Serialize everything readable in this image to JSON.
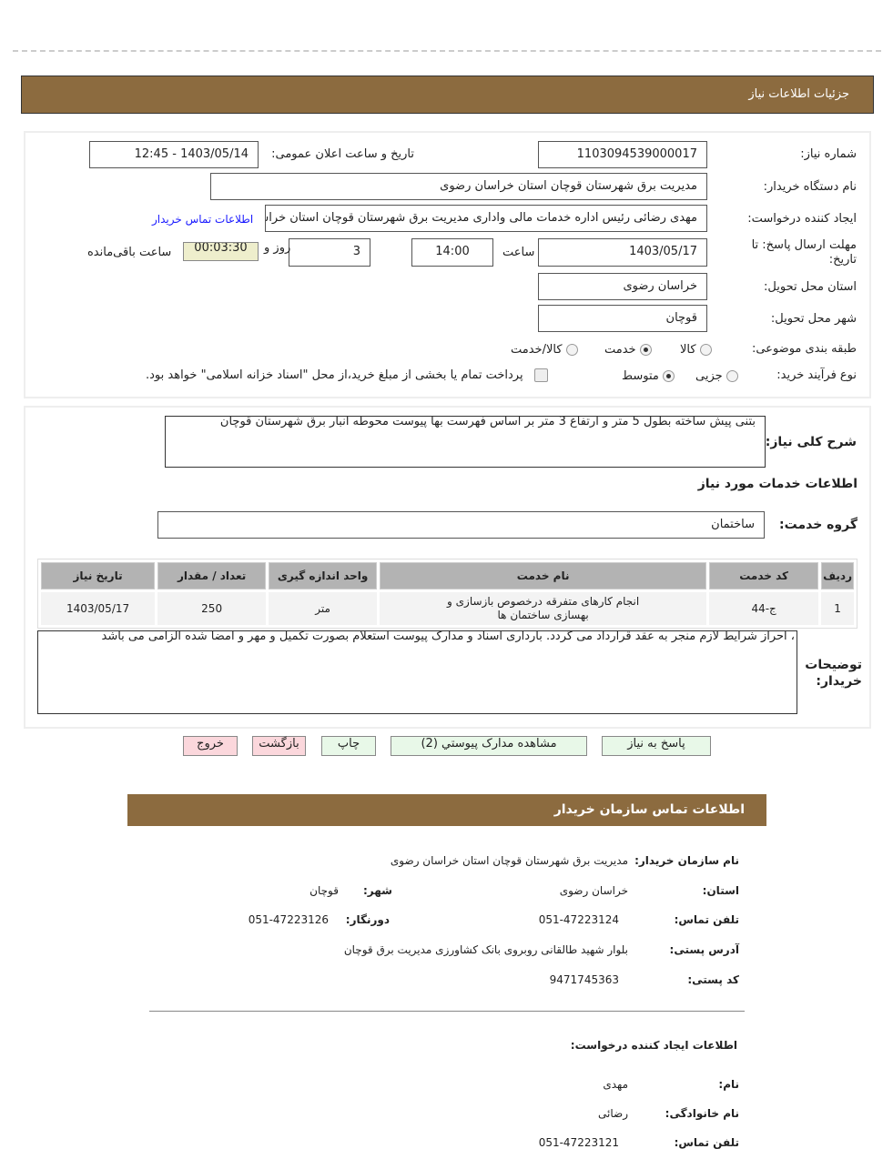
{
  "header": {
    "title": "جزئیات اطلاعات نیاز"
  },
  "details": {
    "need_number_label": "شماره نیاز:",
    "need_number": "1103094539000017",
    "announce_label": "تاریخ و ساعت اعلان عمومی:",
    "announce_value": "1403/05/14 - 12:45",
    "buyer_label": "نام دستگاه خریدار:",
    "buyer_value": "مدیریت برق شهرستان قوچان استان خراسان رضوی",
    "creator_label": "ایجاد کننده درخواست:",
    "creator_value": "مهدی رضائی رئیس اداره خدمات مالی واداری مدیریت برق شهرستان قوچان استان خراسان رضوی",
    "contact_link": "اطلاعات تماس خریدار",
    "deadline_label": "مهلت ارسال پاسخ: تا تاریخ:",
    "deadline_date": "1403/05/17",
    "time_label": "ساعت",
    "deadline_time": "14:00",
    "days": "3",
    "days_label": "روز و",
    "timer": "00:03:30",
    "remaining_label": "ساعت باقی‌مانده",
    "province_label": "استان محل تحویل:",
    "province_value": "خراسان رضوی",
    "city_label": "شهر محل تحویل:",
    "city_value": "قوچان",
    "category_label": "طبقه بندی موضوعی:",
    "category_options": [
      "کالا",
      "خدمت",
      "کالا/خدمت"
    ],
    "category_selected": "خدمت",
    "process_label": "نوع فرآیند خرید:",
    "process_options": [
      "جزیی",
      "متوسط"
    ],
    "process_selected": "متوسط",
    "payment_note": "پرداخت تمام یا بخشی از مبلغ خرید،از محل \"اسناد خزانه اسلامی\" خواهد بود."
  },
  "services": {
    "desc_label": "شرح کلی نیاز:",
    "desc_value": "بتنی پیش ساخته بطول 5 متر و ارتفاع 3 متر بر اساس فهرست بها پیوست محوطه انبار برق شهرستان قوچان",
    "section_title": "اطلاعات خدمات مورد نیاز",
    "group_label": "گروه خدمت:",
    "group_value": "ساختمان",
    "columns": [
      "ردیف",
      "کد خدمت",
      "نام خدمت",
      "واحد اندازه گیری",
      "تعداد / مقدار",
      "تاریخ نیاز"
    ],
    "rows": [
      [
        "1",
        "ج-44",
        "انجام کارهای متفرقه درخصوص بازسازی و بهسازی ساختمان ها",
        "متر",
        "250",
        "1403/05/17"
      ]
    ],
    "notes_label": "توضیحات خریدار:",
    "notes_value": "، احراز شرایط لازم منجر به عقد قرارداد می گردد. بارداری اسناد و مدارک پیوست استعلام بصورت تکمیل و مهر و امضا شده الزامی می باشد"
  },
  "buttons": {
    "reply": "پاسخ به نیاز",
    "docs": "مشاهده مدارک پیوستي (2)",
    "print": "چاپ",
    "back": "بازگشت",
    "exit": "خروج"
  },
  "contact": {
    "title": "اطلاعات تماس سازمان خریدار",
    "org_label": "نام سازمان خریدار:",
    "org_value": "مدیریت برق شهرستان قوچان استان خراسان رضوی",
    "province_label": "استان:",
    "province_value": "خراسان رضوی",
    "city_label": "شهر:",
    "city_value": "قوچان",
    "phone_label": "تلفن تماس:",
    "phone_value": "051-47223124",
    "fax_label": "دورنگار:",
    "fax_value": "051-47223126",
    "address_label": "آدرس پستی:",
    "address_value": "بلوار شهید طالقانی روبروی بانک کشاورزی مدیریت برق قوچان",
    "postal_label": "کد پستی:",
    "postal_value": "9471745363"
  },
  "creator": {
    "title": "اطلاعات ایجاد کننده درخواست:",
    "name_label": "نام:",
    "name_value": "مهدی",
    "family_label": "نام خانوادگی:",
    "family_value": "رضائی",
    "phone_label": "تلفن تماس:",
    "phone_value": "051-47223121"
  }
}
